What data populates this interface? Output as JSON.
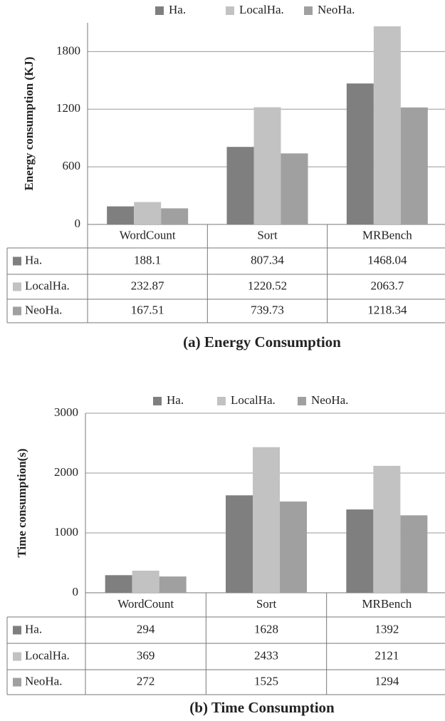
{
  "chart_data": [
    {
      "type": "bar",
      "caption_label": "(a)",
      "caption": "Energy Consumption",
      "y_label": "Energy consumption (KJ)",
      "categories": [
        "WordCount",
        "Sort",
        "MRBench"
      ],
      "series": [
        {
          "name": "Ha.",
          "color": "#7f7f7f",
          "values": [
            188.1,
            807.34,
            1468.04
          ]
        },
        {
          "name": "LocalHa.",
          "color": "#c2c2c2",
          "values": [
            232.87,
            1220.52,
            2063.7
          ]
        },
        {
          "name": "NeoHa.",
          "color": "#a0a0a0",
          "values": [
            167.51,
            739.73,
            1218.34
          ]
        }
      ],
      "ylim": [
        0,
        2100
      ],
      "yticks": [
        0,
        600,
        1200,
        1800
      ],
      "grid": true
    },
    {
      "type": "bar",
      "caption_label": "(b)",
      "caption": "Time Consumption",
      "y_label": "Time consumption(s)",
      "categories": [
        "WordCount",
        "Sort",
        "MRBench"
      ],
      "series": [
        {
          "name": "Ha.",
          "color": "#7f7f7f",
          "values": [
            294,
            1628,
            1392
          ]
        },
        {
          "name": "LocalHa.",
          "color": "#c2c2c2",
          "values": [
            369,
            2433,
            2121
          ]
        },
        {
          "name": "NeoHa.",
          "color": "#a0a0a0",
          "values": [
            272,
            1525,
            1294
          ]
        }
      ],
      "ylim": [
        0,
        3000
      ],
      "yticks": [
        0,
        1000,
        2000,
        3000
      ],
      "grid": true
    }
  ]
}
